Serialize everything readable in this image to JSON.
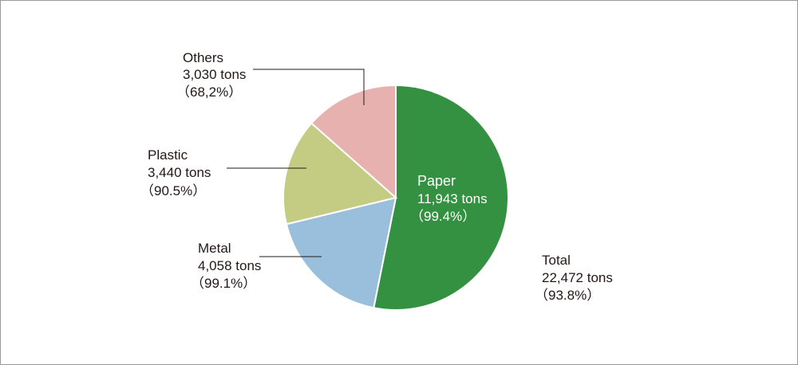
{
  "chart_data": {
    "type": "pie",
    "title": "",
    "slices": [
      {
        "label": "Paper",
        "amount": "11,943 tons",
        "rate": "（99.4%）",
        "value": 11943,
        "color": "#339141"
      },
      {
        "label": "Metal",
        "amount": "4,058 tons",
        "rate": "（99.1%）",
        "value": 4058,
        "color": "#9abfdc"
      },
      {
        "label": "Plastic",
        "amount": "3,440 tons",
        "rate": "（90.5%）",
        "value": 3440,
        "color": "#c3cc82"
      },
      {
        "label": "Others",
        "amount": "3,030 tons",
        "rate": "（68,2%）",
        "value": 3030,
        "color": "#e7b1af"
      }
    ],
    "total": {
      "label": "Total",
      "amount": "22,472 tons",
      "rate": "（93.8%）",
      "value": 22472
    },
    "start_angle": "12 o'clock",
    "direction": "clockwise",
    "legend": "none"
  }
}
